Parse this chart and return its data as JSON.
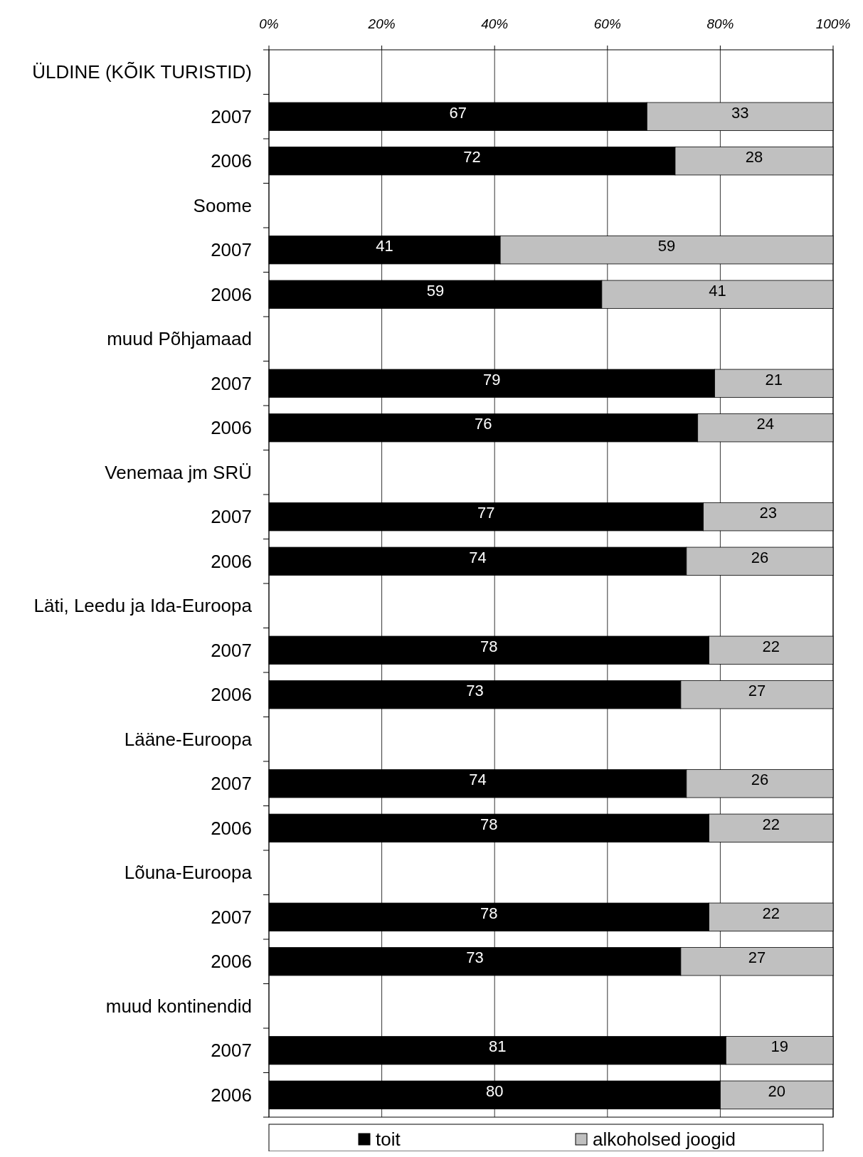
{
  "chart_data": {
    "type": "bar",
    "orientation": "horizontal",
    "stacked": true,
    "categories": [
      "ÜLDINE (KÕIK TURISTID)",
      "2007",
      "2006",
      "Soome",
      "2007",
      "2006",
      "muud Põhjamaad",
      "2007",
      "2006",
      "Venemaa jm SRÜ",
      "2007",
      "2006",
      "Läti, Leedu ja Ida-Euroopa",
      "2007",
      "2006",
      "Lääne-Euroopa",
      "2007",
      "2006",
      "Lõuna-Euroopa",
      "2007",
      "2006",
      "muud kontinendid",
      "2007",
      "2006"
    ],
    "series": [
      {
        "name": "toit",
        "color": "#000000",
        "values": [
          null,
          67,
          72,
          null,
          41,
          59,
          null,
          79,
          76,
          null,
          77,
          74,
          null,
          78,
          73,
          null,
          74,
          78,
          null,
          78,
          73,
          null,
          81,
          80
        ]
      },
      {
        "name": "alkoholsed joogid",
        "color": "#c0c0c0",
        "values": [
          null,
          33,
          28,
          null,
          59,
          41,
          null,
          21,
          24,
          null,
          23,
          26,
          null,
          22,
          27,
          null,
          26,
          22,
          null,
          22,
          27,
          null,
          19,
          20
        ]
      }
    ],
    "xlim": [
      0,
      100
    ],
    "xticks": [
      {
        "value": 0,
        "label": "0%"
      },
      {
        "value": 20,
        "label": "20%"
      },
      {
        "value": 40,
        "label": "40%"
      },
      {
        "value": 60,
        "label": "60%"
      },
      {
        "value": 80,
        "label": "80%"
      },
      {
        "value": 100,
        "label": "100%"
      }
    ],
    "grid": "x",
    "data_labels": true,
    "legend": "bottom"
  }
}
